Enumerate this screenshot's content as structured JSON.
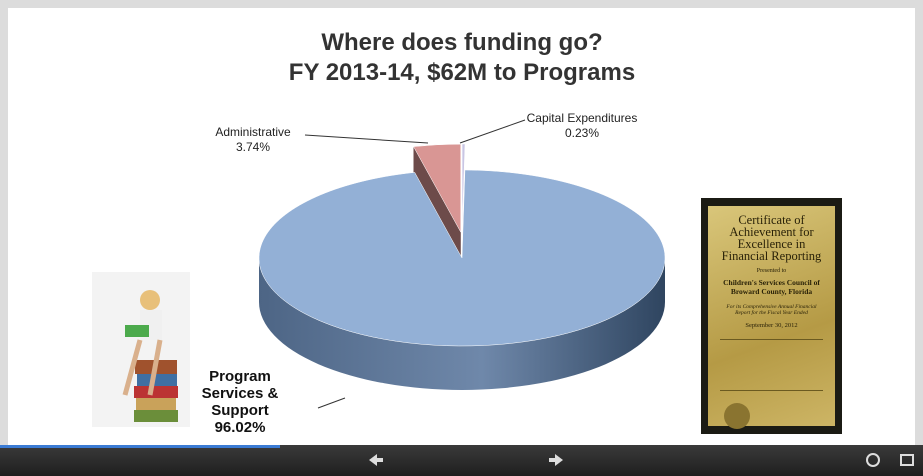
{
  "chart_data": {
    "type": "pie",
    "title": "Where does funding go?",
    "subtitle": "FY 2013-14, $62M to Programs",
    "categories": [
      "Administrative",
      "Capital Expenditures",
      "Program Services & Support"
    ],
    "values": [
      3.74,
      0.23,
      96.02
    ],
    "value_labels": [
      "3.74%",
      "0.23%",
      "96.02%"
    ],
    "colors": [
      "#d99694",
      "#c9c6e4",
      "#93b0d6"
    ],
    "exploded": [
      true,
      true,
      false
    ]
  },
  "certificate": {
    "heading": "Certificate of Achievement for Excellence in Financial Reporting",
    "presented": "Presented to",
    "recipient": "Children's Services Council of Broward County, Florida",
    "purpose": "For its Comprehensive Annual Financial Report for the Fiscal Year Ended",
    "date": "September 30, 2012"
  }
}
